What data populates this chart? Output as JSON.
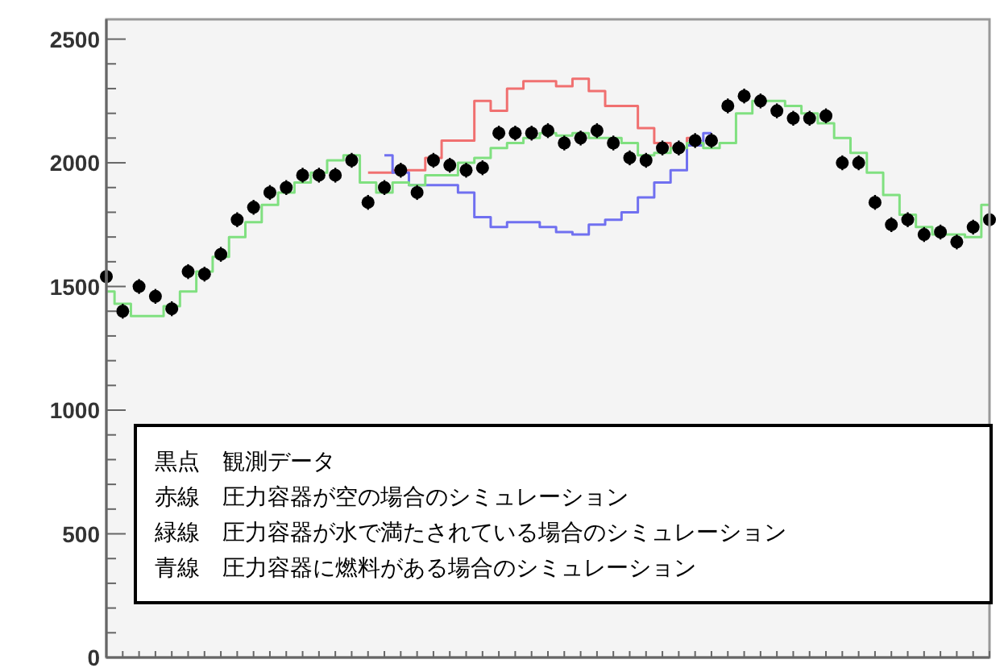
{
  "chart_data": {
    "type": "step",
    "categories": [
      null,
      null,
      null,
      null,
      null,
      null,
      null,
      null,
      null,
      null,
      null,
      null,
      null,
      null,
      null,
      null,
      null,
      null,
      null,
      null,
      null,
      null,
      null,
      null,
      null,
      null,
      null,
      null,
      null,
      null,
      null,
      null,
      null,
      null,
      null,
      null,
      null,
      null,
      null,
      null,
      null,
      null,
      null,
      null,
      null,
      null,
      null,
      null,
      null,
      null,
      null,
      null,
      null,
      null,
      null
    ],
    "ylim": [
      0,
      2580
    ],
    "yticks": [
      0,
      500,
      1000,
      1500,
      2000,
      2500
    ],
    "grid": false,
    "series": [
      {
        "color": "#f07070",
        "values": [
          null,
          null,
          null,
          null,
          null,
          null,
          null,
          null,
          null,
          null,
          null,
          null,
          null,
          null,
          null,
          null,
          1960,
          1960,
          1970,
          1970,
          2020,
          2090,
          2090,
          2250,
          2210,
          2300,
          2330,
          2330,
          2310,
          2340,
          2290,
          2230,
          2230,
          2140,
          2080,
          2060,
          2100,
          null,
          null,
          null,
          null,
          null,
          null,
          null,
          null,
          null,
          null,
          null,
          null,
          null,
          null,
          null,
          null,
          null,
          null
        ]
      },
      {
        "color": "#7070f0",
        "values": [
          null,
          null,
          null,
          null,
          null,
          null,
          null,
          null,
          null,
          null,
          null,
          null,
          null,
          null,
          null,
          null,
          null,
          2030,
          1960,
          1910,
          1910,
          1910,
          1880,
          1780,
          1740,
          1760,
          1760,
          1740,
          1720,
          1710,
          1750,
          1770,
          1800,
          1860,
          1920,
          1970,
          2070,
          2120,
          null,
          null,
          null,
          null,
          null,
          null,
          null,
          null,
          null,
          null,
          null,
          null,
          null,
          null,
          null,
          null,
          null
        ]
      },
      {
        "color": "#80e080",
        "values": [
          1480,
          1430,
          1380,
          1380,
          1420,
          1480,
          1560,
          1620,
          1700,
          1760,
          1830,
          1880,
          1920,
          1960,
          2010,
          2030,
          1920,
          1880,
          1920,
          1910,
          1950,
          1950,
          2000,
          2020,
          2060,
          2080,
          2100,
          2120,
          2110,
          2120,
          2100,
          2100,
          2080,
          2030,
          2040,
          2060,
          2080,
          2060,
          2080,
          2200,
          2250,
          2250,
          2230,
          2200,
          2160,
          2100,
          2040,
          1960,
          1870,
          1790,
          1740,
          1710,
          1710,
          1700,
          1830
        ]
      },
      {
        "type": "scatter",
        "color": "#000000",
        "marker": "circle",
        "values": [
          1540,
          1400,
          1500,
          1460,
          1410,
          1560,
          1550,
          1630,
          1770,
          1820,
          1880,
          1900,
          1950,
          1950,
          1950,
          2010,
          1840,
          1900,
          1970,
          1880,
          2010,
          1990,
          1970,
          1980,
          2120,
          2120,
          2120,
          2130,
          2080,
          2100,
          2130,
          2080,
          2020,
          2010,
          2060,
          2060,
          2090,
          2090,
          2230,
          2270,
          2250,
          2210,
          2180,
          2180,
          2190,
          2000,
          2000,
          1840,
          1750,
          1770,
          1710,
          1720,
          1680,
          1740,
          1770
        ],
        "errors": [
          30,
          30,
          30,
          30,
          30,
          30,
          30,
          30,
          30,
          30,
          30,
          30,
          30,
          30,
          30,
          30,
          30,
          30,
          30,
          30,
          30,
          30,
          30,
          30,
          30,
          30,
          30,
          30,
          30,
          30,
          30,
          30,
          30,
          30,
          30,
          30,
          30,
          30,
          30,
          30,
          30,
          30,
          30,
          30,
          30,
          30,
          30,
          30,
          30,
          30,
          30,
          30,
          30,
          30,
          30
        ]
      }
    ],
    "annotations": [
      "黒点　観測データ",
      "赤線　圧力容器が空の場合のシミュレーション",
      "緑線　圧力容器が水で満たされている場合のシミュレーション",
      "青線　圧力容器に燃料がある場合のシミュレーション"
    ]
  }
}
